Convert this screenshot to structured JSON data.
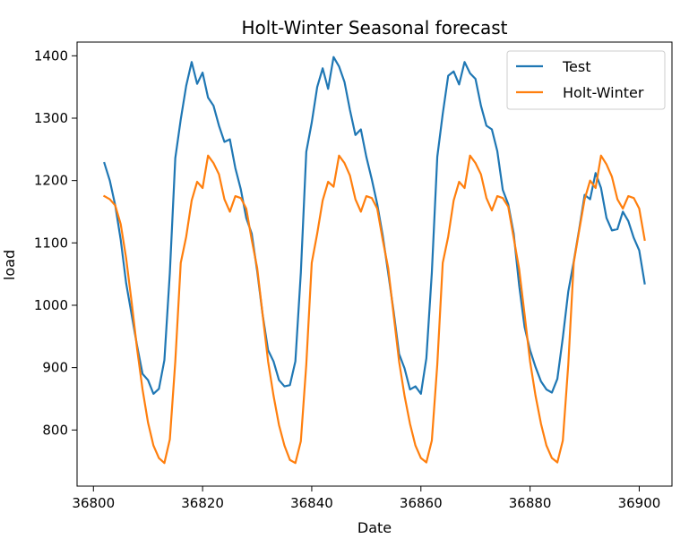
{
  "chart_data": {
    "type": "line",
    "title": "Holt-Winter Seasonal forecast",
    "xlabel": "Date",
    "ylabel": "load",
    "xlim": [
      36797,
      36906
    ],
    "ylim": [
      710,
      1422
    ],
    "xticks": [
      36800,
      36820,
      36840,
      36860,
      36880,
      36900
    ],
    "yticks": [
      800,
      900,
      1000,
      1100,
      1200,
      1300,
      1400
    ],
    "grid": false,
    "legend_position": "top-right",
    "x": [
      36802,
      36803,
      36804,
      36805,
      36806,
      36807,
      36808,
      36809,
      36810,
      36811,
      36812,
      36813,
      36814,
      36815,
      36816,
      36817,
      36818,
      36819,
      36820,
      36821,
      36822,
      36823,
      36824,
      36825,
      36826,
      36827,
      36828,
      36829,
      36830,
      36831,
      36832,
      36833,
      36834,
      36835,
      36836,
      36837,
      36838,
      36839,
      36840,
      36841,
      36842,
      36843,
      36844,
      36845,
      36846,
      36847,
      36848,
      36849,
      36850,
      36851,
      36852,
      36853,
      36854,
      36855,
      36856,
      36857,
      36858,
      36859,
      36860,
      36861,
      36862,
      36863,
      36864,
      36865,
      36866,
      36867,
      36868,
      36869,
      36870,
      36871,
      36872,
      36873,
      36874,
      36875,
      36876,
      36877,
      36878,
      36879,
      36880,
      36881,
      36882,
      36883,
      36884,
      36885,
      36886,
      36887,
      36888,
      36889,
      36890,
      36891,
      36892,
      36893,
      36894,
      36895,
      36896,
      36897,
      36898,
      36899,
      36900,
      36901
    ],
    "series": [
      {
        "name": "Test",
        "color": "#1f77b4",
        "values": [
          1228,
          1200,
          1160,
          1105,
          1035,
          985,
          935,
          890,
          880,
          858,
          866,
          912,
          1052,
          1236,
          1298,
          1352,
          1390,
          1355,
          1373,
          1333,
          1320,
          1288,
          1262,
          1266,
          1220,
          1186,
          1140,
          1115,
          1055,
          985,
          928,
          910,
          880,
          870,
          872,
          910,
          1052,
          1246,
          1293,
          1350,
          1380,
          1347,
          1398,
          1383,
          1358,
          1313,
          1273,
          1282,
          1238,
          1202,
          1162,
          1112,
          1052,
          990,
          922,
          899,
          865,
          870,
          858,
          915,
          1052,
          1238,
          1307,
          1368,
          1375,
          1354,
          1390,
          1372,
          1363,
          1320,
          1288,
          1282,
          1247,
          1185,
          1162,
          1115,
          1032,
          965,
          928,
          901,
          878,
          865,
          860,
          882,
          948,
          1022,
          1070,
          1122,
          1177,
          1170,
          1212,
          1188,
          1140,
          1120,
          1122,
          1150,
          1135,
          1108,
          1088,
          1035
        ]
      },
      {
        "name": "Holt-Winter",
        "color": "#ff7f0e",
        "values": [
          1175,
          1170,
          1160,
          1130,
          1075,
          1005,
          930,
          865,
          812,
          775,
          755,
          747,
          785,
          910,
          1068,
          1110,
          1168,
          1198,
          1188,
          1240,
          1228,
          1210,
          1170,
          1150,
          1175,
          1172,
          1155,
          1105,
          1060,
          985,
          910,
          855,
          808,
          775,
          752,
          747,
          782,
          905,
          1068,
          1115,
          1168,
          1198,
          1190,
          1240,
          1228,
          1208,
          1170,
          1150,
          1175,
          1172,
          1155,
          1105,
          1060,
          985,
          910,
          855,
          810,
          775,
          755,
          748,
          783,
          905,
          1068,
          1110,
          1168,
          1198,
          1188,
          1240,
          1228,
          1210,
          1172,
          1152,
          1175,
          1172,
          1158,
          1108,
          1058,
          985,
          910,
          855,
          810,
          775,
          755,
          748,
          783,
          905,
          1068,
          1120,
          1170,
          1200,
          1188,
          1240,
          1226,
          1206,
          1170,
          1155,
          1175,
          1172,
          1155,
          1105
        ]
      }
    ]
  }
}
